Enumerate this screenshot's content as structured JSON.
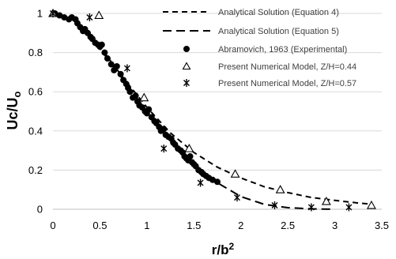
{
  "chart_data": {
    "type": "scatter",
    "xlim": [
      0,
      3.5
    ],
    "ylim": [
      0,
      1
    ],
    "grid": "horizontal",
    "legend_position": "top-right",
    "x_ticks": [
      "0",
      "0.5",
      "1",
      "1.5",
      "2",
      "2.5",
      "3",
      "3.5"
    ],
    "y_ticks": [
      "0",
      "0.2",
      "0.4",
      "0.6",
      "0.8",
      "1"
    ],
    "xlabel_main": "r/b",
    "xlabel_sup": "2",
    "ylabel_main": "Uc/U",
    "ylabel_sub": "o",
    "series": [
      {
        "name": "Analytical Solution (Equation 4)",
        "kind": "line",
        "dash": "long",
        "x": [
          0,
          0.25,
          0.5,
          0.75,
          1.0,
          1.25,
          1.5,
          1.75,
          2.0,
          2.25,
          2.5,
          2.75,
          3.0
        ],
        "y": [
          1.0,
          0.96,
          0.82,
          0.66,
          0.5,
          0.36,
          0.23,
          0.135,
          0.065,
          0.025,
          0.008,
          0.002,
          0.0
        ]
      },
      {
        "name": "Analytical Solution (Equation 5)",
        "kind": "line",
        "dash": "short",
        "x": [
          0,
          0.25,
          0.5,
          0.75,
          1.0,
          1.25,
          1.5,
          1.75,
          2.0,
          2.25,
          2.5,
          2.75,
          3.0,
          3.25,
          3.4
        ],
        "y": [
          1.0,
          0.96,
          0.83,
          0.67,
          0.52,
          0.39,
          0.29,
          0.215,
          0.16,
          0.115,
          0.085,
          0.06,
          0.045,
          0.032,
          0.026
        ]
      },
      {
        "name": "Abramovich, 1963 (Experimental)",
        "kind": "dot",
        "x": [
          0.02,
          0.07,
          0.12,
          0.17,
          0.2,
          0.24,
          0.26,
          0.29,
          0.32,
          0.34,
          0.37,
          0.4,
          0.42,
          0.45,
          0.48,
          0.5,
          0.52,
          0.55,
          0.58,
          0.62,
          0.65,
          0.68,
          0.72,
          0.75,
          0.78,
          0.8,
          0.82,
          0.85,
          0.88,
          0.9,
          0.92,
          0.95,
          0.98,
          1.0,
          1.02,
          1.05,
          1.08,
          1.1,
          1.13,
          1.15,
          1.18,
          1.2,
          1.23,
          1.26,
          1.28,
          1.3,
          1.33,
          1.36,
          1.38,
          1.4,
          1.42,
          1.44,
          1.46,
          1.48,
          1.5,
          1.52,
          1.55,
          1.58,
          1.6,
          1.63,
          1.66,
          1.7,
          1.75
        ],
        "y": [
          1.0,
          0.99,
          0.98,
          0.97,
          0.98,
          0.97,
          0.95,
          0.93,
          0.91,
          0.92,
          0.9,
          0.88,
          0.87,
          0.85,
          0.84,
          0.83,
          0.84,
          0.8,
          0.77,
          0.74,
          0.71,
          0.73,
          0.69,
          0.66,
          0.64,
          0.62,
          0.6,
          0.57,
          0.58,
          0.55,
          0.53,
          0.52,
          0.5,
          0.49,
          0.51,
          0.47,
          0.45,
          0.44,
          0.42,
          0.4,
          0.41,
          0.38,
          0.37,
          0.36,
          0.34,
          0.33,
          0.31,
          0.3,
          0.29,
          0.27,
          0.26,
          0.25,
          0.27,
          0.24,
          0.23,
          0.22,
          0.2,
          0.19,
          0.18,
          0.17,
          0.16,
          0.15,
          0.14
        ]
      },
      {
        "name": "Present Numerical Model, Z/H=0.44",
        "kind": "triangle",
        "x": [
          0,
          0.49,
          0.97,
          1.45,
          1.94,
          2.42,
          2.91,
          3.39
        ],
        "y": [
          1.0,
          0.99,
          0.57,
          0.31,
          0.18,
          0.1,
          0.04,
          0.02
        ]
      },
      {
        "name": "Present Numerical Model, Z/H=0.57",
        "kind": "star",
        "x": [
          0,
          0.39,
          0.79,
          1.18,
          1.57,
          1.96,
          2.36,
          2.75,
          3.15
        ],
        "y": [
          1.0,
          0.98,
          0.72,
          0.31,
          0.135,
          0.06,
          0.02,
          0.01,
          0.01
        ]
      }
    ]
  }
}
